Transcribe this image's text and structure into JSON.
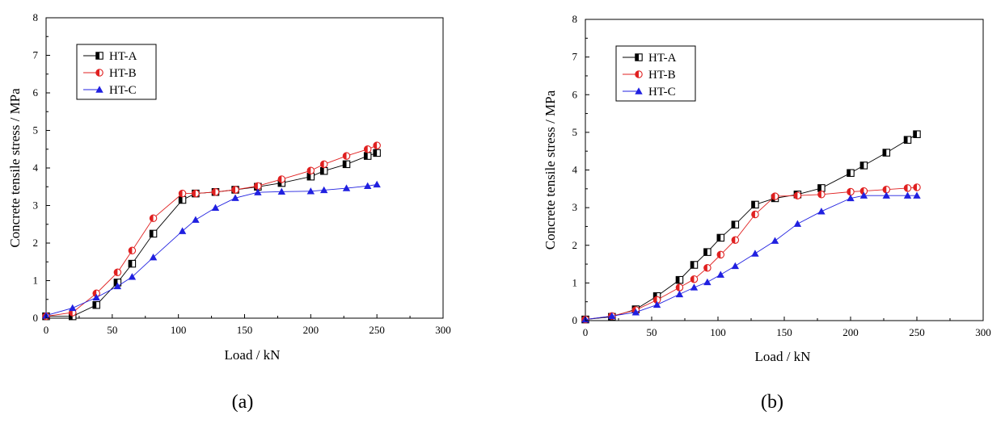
{
  "chart_data": [
    {
      "type": "line",
      "panel_label": "(a)",
      "xlabel": "Load / kN",
      "ylabel": "Concrete tensile stress / MPa",
      "xlim": [
        0,
        300
      ],
      "ylim": [
        0,
        8
      ],
      "xticks": [
        0,
        50,
        100,
        150,
        200,
        250,
        300
      ],
      "yticks": [
        0,
        1,
        2,
        3,
        4,
        5,
        6,
        7,
        8
      ],
      "legend_position": "top-left",
      "series": [
        {
          "name": "HT-A",
          "color": "#000000",
          "marker": "half-square",
          "x": [
            0,
            20,
            38,
            54,
            65,
            81,
            103,
            113,
            128,
            143,
            160,
            178,
            200,
            210,
            227,
            243,
            250
          ],
          "y": [
            0.05,
            0.05,
            0.35,
            0.95,
            1.45,
            2.25,
            3.15,
            3.32,
            3.36,
            3.42,
            3.5,
            3.6,
            3.77,
            3.92,
            4.1,
            4.32,
            4.4
          ]
        },
        {
          "name": "HT-B",
          "color": "#e02020",
          "marker": "half-circle",
          "x": [
            0,
            20,
            38,
            54,
            65,
            81,
            103,
            113,
            128,
            143,
            160,
            178,
            200,
            210,
            227,
            243,
            250
          ],
          "y": [
            0.05,
            0.15,
            0.66,
            1.22,
            1.8,
            2.66,
            3.32,
            3.32,
            3.36,
            3.42,
            3.52,
            3.7,
            3.93,
            4.1,
            4.32,
            4.5,
            4.6
          ]
        },
        {
          "name": "HT-C",
          "color": "#2020e0",
          "marker": "triangle",
          "x": [
            0,
            20,
            38,
            54,
            65,
            81,
            103,
            113,
            128,
            143,
            160,
            178,
            200,
            210,
            227,
            243,
            250
          ],
          "y": [
            0.07,
            0.27,
            0.55,
            0.85,
            1.1,
            1.62,
            2.32,
            2.62,
            2.94,
            3.2,
            3.35,
            3.37,
            3.38,
            3.41,
            3.46,
            3.52,
            3.56
          ]
        }
      ]
    },
    {
      "type": "line",
      "panel_label": "(b)",
      "xlabel": "Load / kN",
      "ylabel": "Concrete tensile stress / MPa",
      "xlim": [
        0,
        300
      ],
      "ylim": [
        0,
        8
      ],
      "xticks": [
        0,
        50,
        100,
        150,
        200,
        250,
        300
      ],
      "yticks": [
        0,
        1,
        2,
        3,
        4,
        5,
        6,
        7,
        8
      ],
      "legend_position": "top-left",
      "series": [
        {
          "name": "HT-A",
          "color": "#000000",
          "marker": "half-square",
          "x": [
            0,
            20,
            38,
            54,
            71,
            82,
            92,
            102,
            113,
            128,
            143,
            160,
            178,
            200,
            210,
            227,
            243,
            250
          ],
          "y": [
            0.03,
            0.1,
            0.3,
            0.65,
            1.08,
            1.48,
            1.82,
            2.2,
            2.55,
            3.08,
            3.25,
            3.35,
            3.52,
            3.92,
            4.12,
            4.46,
            4.8,
            4.95
          ]
        },
        {
          "name": "HT-B",
          "color": "#e02020",
          "marker": "half-circle",
          "x": [
            0,
            20,
            38,
            54,
            71,
            82,
            92,
            102,
            113,
            128,
            143,
            160,
            178,
            200,
            210,
            227,
            243,
            250
          ],
          "y": [
            0.03,
            0.12,
            0.28,
            0.55,
            0.88,
            1.1,
            1.4,
            1.75,
            2.14,
            2.82,
            3.3,
            3.32,
            3.35,
            3.42,
            3.44,
            3.48,
            3.52,
            3.54
          ]
        },
        {
          "name": "HT-C",
          "color": "#2020e0",
          "marker": "triangle",
          "x": [
            0,
            20,
            38,
            54,
            71,
            82,
            92,
            102,
            113,
            128,
            143,
            160,
            178,
            200,
            210,
            227,
            243,
            250
          ],
          "y": [
            0.03,
            0.12,
            0.22,
            0.42,
            0.7,
            0.88,
            1.02,
            1.22,
            1.45,
            1.78,
            2.12,
            2.57,
            2.9,
            3.25,
            3.32,
            3.32,
            3.32,
            3.32
          ]
        }
      ]
    }
  ]
}
